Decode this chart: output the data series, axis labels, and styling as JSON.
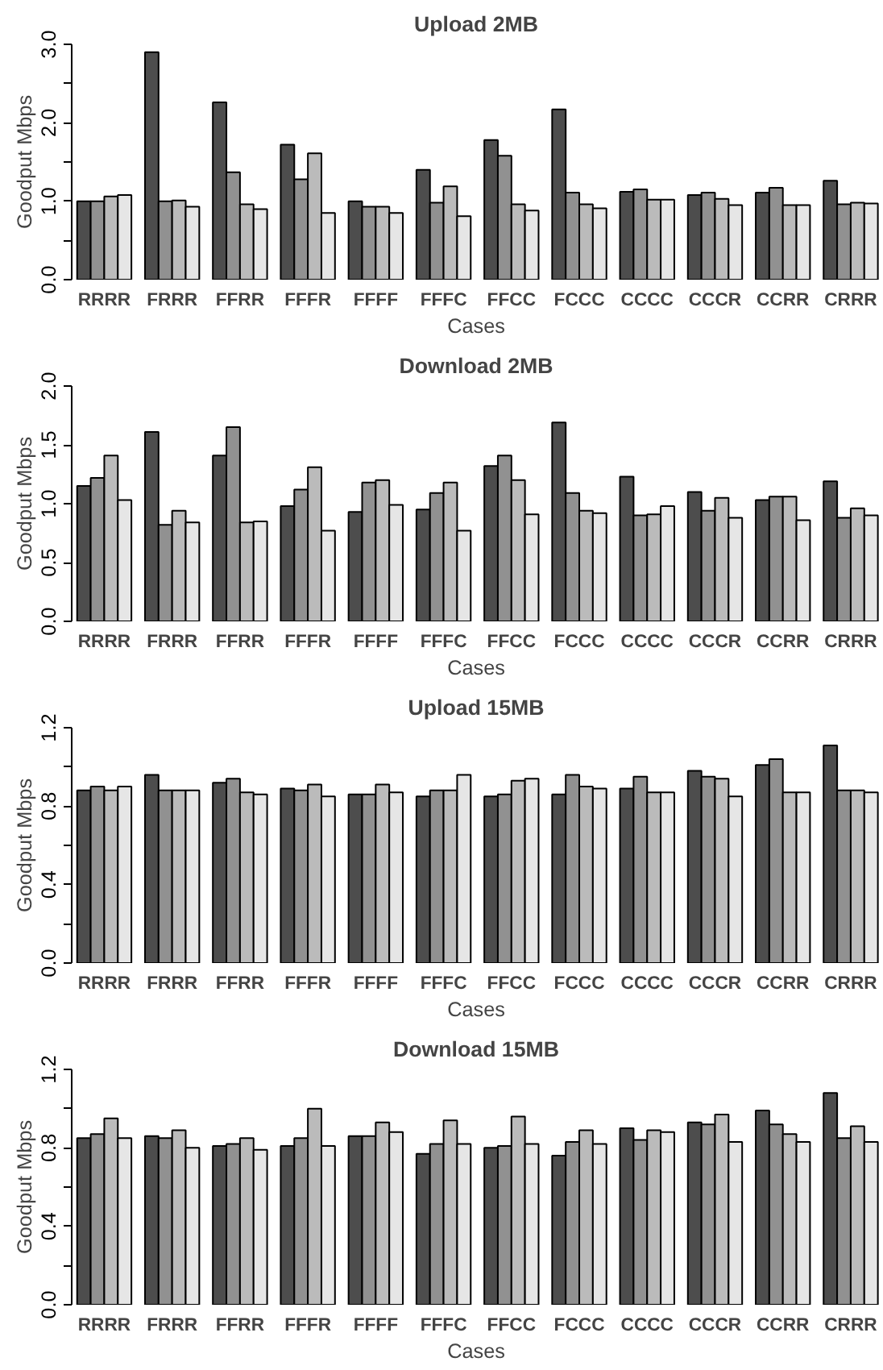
{
  "chart_data": [
    {
      "type": "bar",
      "title": "Upload 2MB",
      "xlabel": "Cases",
      "ylabel": "Goodput Mbps",
      "categories": [
        "RRRR",
        "FRRR",
        "FFRR",
        "FFFR",
        "FFFF",
        "FFFC",
        "FFCC",
        "FCCC",
        "CCCC",
        "CCCR",
        "CCRR",
        "CRRR"
      ],
      "ylim": [
        0,
        3
      ],
      "yticks": [
        {
          "value": 0,
          "label": "0.0"
        },
        {
          "value": 0.5,
          "label": null
        },
        {
          "value": 1,
          "label": "1.0"
        },
        {
          "value": 1.5,
          "label": null
        },
        {
          "value": 2,
          "label": "2.0"
        },
        {
          "value": 2.5,
          "label": null
        },
        {
          "value": 3,
          "label": "3.0"
        }
      ],
      "series": [
        {
          "color": "#4d4d4d",
          "values": [
            1.0,
            2.9,
            2.26,
            1.72,
            1.0,
            1.4,
            1.78,
            2.17,
            1.12,
            1.08,
            1.11,
            1.26
          ]
        },
        {
          "color": "#919191",
          "values": [
            1.0,
            1.0,
            1.37,
            1.28,
            0.93,
            0.98,
            1.58,
            1.11,
            1.15,
            1.11,
            1.17,
            0.96
          ]
        },
        {
          "color": "#bbbbbb",
          "values": [
            1.06,
            1.01,
            0.96,
            1.61,
            0.93,
            1.19,
            0.96,
            0.96,
            1.02,
            1.03,
            0.95,
            0.98
          ]
        },
        {
          "color": "#e6e6e6",
          "values": [
            1.08,
            0.93,
            0.9,
            0.85,
            0.85,
            0.81,
            0.88,
            0.91,
            1.02,
            0.95,
            0.95,
            0.97
          ]
        }
      ]
    },
    {
      "type": "bar",
      "title": "Download 2MB",
      "xlabel": "Cases",
      "ylabel": "Goodput Mbps",
      "categories": [
        "RRRR",
        "FRRR",
        "FFRR",
        "FFFR",
        "FFFF",
        "FFFC",
        "FFCC",
        "FCCC",
        "CCCC",
        "CCCR",
        "CCRR",
        "CRRR"
      ],
      "ylim": [
        0,
        2
      ],
      "yticks": [
        {
          "value": 0,
          "label": "0.0"
        },
        {
          "value": 0.5,
          "label": "0.5"
        },
        {
          "value": 1,
          "label": "1.0"
        },
        {
          "value": 1.5,
          "label": "1.5"
        },
        {
          "value": 2,
          "label": "2.0"
        }
      ],
      "series": [
        {
          "color": "#4d4d4d",
          "values": [
            1.15,
            1.61,
            1.41,
            0.98,
            0.93,
            0.95,
            1.32,
            1.69,
            1.23,
            1.1,
            1.03,
            1.19
          ]
        },
        {
          "color": "#919191",
          "values": [
            1.22,
            0.82,
            1.65,
            1.12,
            1.18,
            1.09,
            1.41,
            1.09,
            0.9,
            0.94,
            1.06,
            0.88
          ]
        },
        {
          "color": "#bbbbbb",
          "values": [
            1.41,
            0.94,
            0.84,
            1.31,
            1.2,
            1.18,
            1.2,
            0.94,
            0.91,
            1.05,
            1.06,
            0.96
          ]
        },
        {
          "color": "#e6e6e6",
          "values": [
            1.03,
            0.84,
            0.85,
            0.77,
            0.99,
            0.77,
            0.91,
            0.92,
            0.98,
            0.88,
            0.86,
            0.9
          ]
        }
      ]
    },
    {
      "type": "bar",
      "title": "Upload 15MB",
      "xlabel": "Cases",
      "ylabel": "Goodput Mbps",
      "categories": [
        "RRRR",
        "FRRR",
        "FFRR",
        "FFFR",
        "FFFF",
        "FFFC",
        "FFCC",
        "FCCC",
        "CCCC",
        "CCCR",
        "CCRR",
        "CRRR"
      ],
      "ylim": [
        0,
        1.2
      ],
      "yticks": [
        {
          "value": 0,
          "label": "0.0"
        },
        {
          "value": 0.2,
          "label": null
        },
        {
          "value": 0.4,
          "label": "0.4"
        },
        {
          "value": 0.6,
          "label": null
        },
        {
          "value": 0.8,
          "label": "0.8"
        },
        {
          "value": 1.0,
          "label": null
        },
        {
          "value": 1.2,
          "label": "1.2"
        }
      ],
      "series": [
        {
          "color": "#4d4d4d",
          "values": [
            0.88,
            0.96,
            0.92,
            0.89,
            0.86,
            0.85,
            0.85,
            0.86,
            0.89,
            0.98,
            1.01,
            1.11
          ]
        },
        {
          "color": "#919191",
          "values": [
            0.9,
            0.88,
            0.94,
            0.88,
            0.86,
            0.88,
            0.86,
            0.96,
            0.95,
            0.95,
            1.04,
            0.88
          ]
        },
        {
          "color": "#bbbbbb",
          "values": [
            0.88,
            0.88,
            0.87,
            0.91,
            0.91,
            0.88,
            0.93,
            0.9,
            0.87,
            0.94,
            0.87,
            0.88
          ]
        },
        {
          "color": "#e6e6e6",
          "values": [
            0.9,
            0.88,
            0.86,
            0.85,
            0.87,
            0.96,
            0.94,
            0.89,
            0.87,
            0.85,
            0.87,
            0.87
          ]
        }
      ]
    },
    {
      "type": "bar",
      "title": "Download 15MB",
      "xlabel": "Cases",
      "ylabel": "Goodput Mbps",
      "categories": [
        "RRRR",
        "FRRR",
        "FFRR",
        "FFFR",
        "FFFF",
        "FFFC",
        "FFCC",
        "FCCC",
        "CCCC",
        "CCCR",
        "CCRR",
        "CRRR"
      ],
      "ylim": [
        0,
        1.2
      ],
      "yticks": [
        {
          "value": 0,
          "label": "0.0"
        },
        {
          "value": 0.2,
          "label": null
        },
        {
          "value": 0.4,
          "label": "0.4"
        },
        {
          "value": 0.6,
          "label": null
        },
        {
          "value": 0.8,
          "label": "0.8"
        },
        {
          "value": 1.0,
          "label": null
        },
        {
          "value": 1.2,
          "label": "1.2"
        }
      ],
      "series": [
        {
          "color": "#4d4d4d",
          "values": [
            0.85,
            0.86,
            0.81,
            0.81,
            0.86,
            0.77,
            0.8,
            0.76,
            0.9,
            0.93,
            0.99,
            1.08
          ]
        },
        {
          "color": "#919191",
          "values": [
            0.87,
            0.85,
            0.82,
            0.85,
            0.86,
            0.82,
            0.81,
            0.83,
            0.84,
            0.92,
            0.92,
            0.85
          ]
        },
        {
          "color": "#bbbbbb",
          "values": [
            0.95,
            0.89,
            0.85,
            1.0,
            0.93,
            0.94,
            0.96,
            0.89,
            0.89,
            0.97,
            0.87,
            0.91
          ]
        },
        {
          "color": "#e6e6e6",
          "values": [
            0.85,
            0.8,
            0.79,
            0.81,
            0.88,
            0.82,
            0.82,
            0.82,
            0.88,
            0.83,
            0.83,
            0.83
          ]
        }
      ]
    }
  ]
}
